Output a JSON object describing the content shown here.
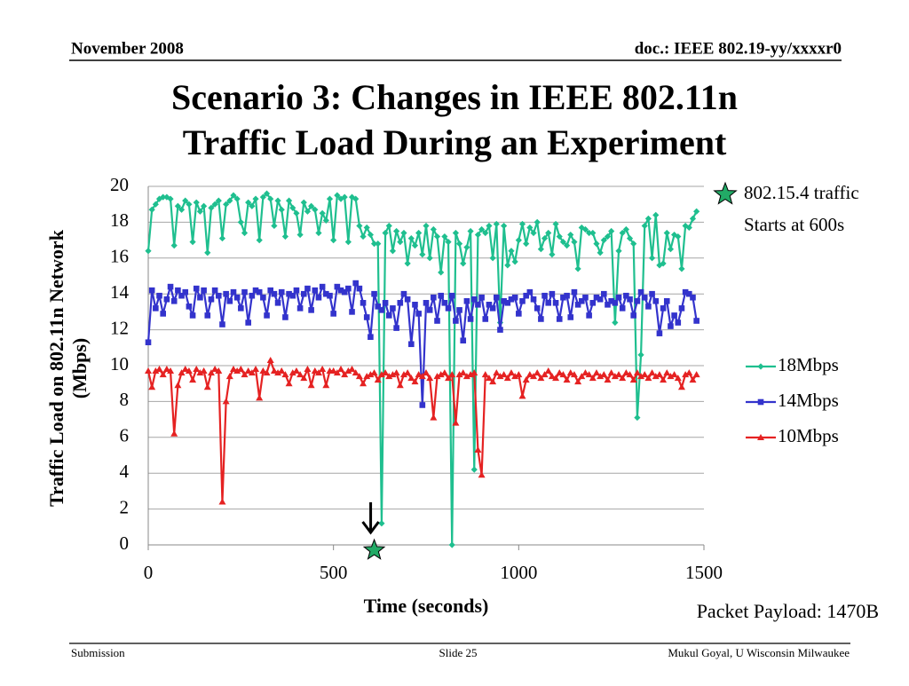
{
  "header": {
    "left": "November 2008",
    "right": "doc.: IEEE 802.19-yy/xxxxr0"
  },
  "footer": {
    "left": "Submission",
    "center": "Slide 25",
    "right": "Mukul Goyal, U Wisconsin Milwaukee"
  },
  "chart_data": {
    "type": "line",
    "title": [
      "Scenario 3: Changes in IEEE 802.11n",
      "Traffic Load During an Experiment"
    ],
    "y_label": [
      "Traffic Load on 802.11n Network",
      "(Mbps)"
    ],
    "x_label": "Time (seconds)",
    "annotation": {
      "text": [
        "802.15.4 traffic",
        "Starts at 600s"
      ],
      "x": 610,
      "y": 0,
      "color": "#22aa66"
    },
    "note": "Packet  Payload: 1470B",
    "xlim": [
      0,
      1500
    ],
    "xticks": [
      0,
      500,
      1000,
      1500
    ],
    "ylim": [
      0,
      20
    ],
    "yticks": [
      0,
      2,
      4,
      6,
      8,
      10,
      12,
      14,
      16,
      18,
      20
    ],
    "grid": true,
    "legend": "right",
    "x": [
      0,
      10,
      20,
      30,
      40,
      50,
      60,
      70,
      80,
      90,
      100,
      110,
      120,
      130,
      140,
      150,
      160,
      170,
      180,
      190,
      200,
      210,
      220,
      230,
      240,
      250,
      260,
      270,
      280,
      290,
      300,
      310,
      320,
      330,
      340,
      350,
      360,
      370,
      380,
      390,
      400,
      410,
      420,
      430,
      440,
      450,
      460,
      470,
      480,
      490,
      500,
      510,
      520,
      530,
      540,
      550,
      560,
      570,
      580,
      590,
      600,
      610,
      620,
      630,
      640,
      650,
      660,
      670,
      680,
      690,
      700,
      710,
      720,
      730,
      740,
      750,
      760,
      770,
      780,
      790,
      800,
      810,
      820,
      830,
      840,
      850,
      860,
      870,
      880,
      890,
      900,
      910,
      920,
      930,
      940,
      950,
      960,
      970,
      980,
      990,
      1000,
      1010,
      1020,
      1030,
      1040,
      1050,
      1060,
      1070,
      1080,
      1090,
      1100,
      1110,
      1120,
      1130,
      1140,
      1150,
      1160,
      1170,
      1180,
      1190,
      1200,
      1210,
      1220,
      1230,
      1240,
      1250,
      1260,
      1270,
      1280,
      1290,
      1300,
      1310,
      1320,
      1330,
      1340,
      1350,
      1360,
      1370,
      1380,
      1390,
      1400,
      1410,
      1420,
      1430,
      1440,
      1450,
      1460,
      1470,
      1480
    ],
    "series": [
      {
        "name": "18Mbps",
        "color": "#1fbf8f",
        "marker": "diamond",
        "values": [
          16.4,
          18.7,
          19.0,
          19.3,
          19.4,
          19.4,
          19.3,
          16.7,
          18.9,
          18.7,
          19.2,
          19.0,
          16.9,
          19.1,
          18.6,
          18.9,
          16.3,
          18.8,
          19.0,
          19.2,
          17.1,
          19.0,
          19.2,
          19.5,
          19.3,
          18.0,
          17.4,
          19.1,
          18.9,
          19.3,
          17.0,
          19.4,
          19.6,
          19.3,
          17.8,
          19.2,
          18.7,
          17.2,
          19.2,
          18.8,
          18.5,
          17.3,
          19.1,
          18.6,
          18.9,
          18.7,
          17.4,
          18.5,
          18.1,
          19.3,
          17.0,
          19.5,
          19.3,
          19.4,
          16.9,
          19.4,
          19.3,
          17.8,
          17.2,
          17.7,
          17.3,
          16.8,
          16.8,
          1.2,
          17.4,
          17.8,
          16.4,
          17.5,
          16.9,
          17.4,
          15.7,
          17.1,
          16.7,
          17.4,
          16.2,
          17.8,
          16.0,
          17.6,
          17.2,
          15.2,
          17.2,
          16.9,
          0.0,
          17.4,
          16.8,
          15.7,
          16.6,
          17.5,
          4.2,
          17.3,
          17.6,
          17.4,
          17.8,
          16.0,
          17.9,
          12.4,
          17.8,
          15.6,
          16.4,
          15.8,
          17.0,
          17.9,
          16.8,
          17.7,
          17.4,
          18.0,
          16.5,
          17.1,
          17.4,
          16.2,
          17.9,
          17.2,
          16.9,
          16.7,
          17.3,
          16.9,
          15.4,
          17.7,
          17.6,
          17.4,
          17.4,
          16.8,
          16.3,
          17.0,
          17.2,
          17.5,
          12.4,
          16.4,
          17.4,
          17.6,
          17.1,
          16.8,
          7.1,
          10.6,
          17.8,
          18.2,
          16.0,
          18.4,
          15.6,
          15.7,
          17.4,
          16.5,
          17.3,
          17.2,
          15.4,
          17.8,
          17.7,
          18.2,
          18.6
        ]
      },
      {
        "name": "14Mbps",
        "color": "#3333cc",
        "marker": "square",
        "values": [
          11.3,
          14.2,
          13.2,
          13.9,
          12.9,
          13.7,
          14.4,
          13.6,
          14.2,
          13.9,
          14.1,
          13.3,
          12.8,
          14.3,
          13.8,
          14.2,
          12.8,
          13.7,
          14.2,
          13.9,
          12.3,
          14.0,
          13.6,
          14.1,
          13.8,
          13.2,
          14.1,
          12.4,
          13.9,
          14.2,
          14.1,
          13.8,
          12.8,
          14.2,
          14.0,
          13.5,
          14.1,
          12.7,
          14.0,
          13.9,
          14.2,
          13.2,
          14.0,
          14.3,
          13.1,
          14.2,
          13.8,
          14.4,
          14.0,
          13.9,
          12.9,
          14.4,
          14.2,
          14.1,
          14.3,
          13.0,
          14.6,
          14.3,
          13.5,
          12.7,
          11.6,
          14.0,
          13.3,
          13.1,
          13.5,
          12.8,
          13.2,
          12.1,
          13.5,
          14.0,
          13.7,
          11.2,
          13.4,
          12.9,
          7.8,
          13.5,
          13.1,
          13.8,
          12.5,
          13.9,
          13.5,
          13.2,
          13.9,
          12.5,
          13.1,
          11.4,
          13.6,
          12.6,
          13.7,
          13.4,
          13.8,
          12.6,
          13.4,
          13.2,
          13.8,
          12.0,
          13.6,
          13.5,
          13.7,
          13.8,
          12.9,
          13.6,
          13.9,
          14.1,
          13.7,
          13.2,
          12.6,
          13.9,
          13.5,
          14.0,
          13.5,
          12.6,
          13.8,
          13.9,
          12.7,
          14.1,
          13.4,
          13.6,
          13.8,
          12.8,
          13.5,
          13.8,
          13.7,
          14.0,
          13.4,
          13.6,
          13.5,
          13.8,
          13.2,
          13.9,
          13.7,
          12.8,
          13.6,
          14.1,
          13.8,
          13.3,
          14.0,
          13.6,
          11.8,
          13.2,
          13.6,
          12.2,
          12.8,
          12.4,
          13.2,
          14.1,
          14.0,
          13.8,
          12.5
        ]
      },
      {
        "name": "10Mbps",
        "color": "#e52222",
        "marker": "triangle",
        "values": [
          9.7,
          8.8,
          9.7,
          9.8,
          9.5,
          9.8,
          9.7,
          6.2,
          8.9,
          9.6,
          9.8,
          9.7,
          9.2,
          9.8,
          9.6,
          9.7,
          8.8,
          9.6,
          9.8,
          9.7,
          2.4,
          8.0,
          9.4,
          9.8,
          9.7,
          9.8,
          9.5,
          9.7,
          9.6,
          9.8,
          8.2,
          9.7,
          9.6,
          10.3,
          9.7,
          9.6,
          9.7,
          9.5,
          9.0,
          9.6,
          9.7,
          9.5,
          9.3,
          9.8,
          8.9,
          9.7,
          9.6,
          9.8,
          8.9,
          9.7,
          9.7,
          9.6,
          9.8,
          9.5,
          9.7,
          9.8,
          9.6,
          9.4,
          9.0,
          9.4,
          9.5,
          9.6,
          9.2,
          9.5,
          9.6,
          9.4,
          9.5,
          9.6,
          8.9,
          9.5,
          9.6,
          9.3,
          9.1,
          9.5,
          9.4,
          9.6,
          9.3,
          7.1,
          9.4,
          9.5,
          9.6,
          9.3,
          9.5,
          6.8,
          9.5,
          9.6,
          9.4,
          9.5,
          9.6,
          5.3,
          3.9,
          9.5,
          9.3,
          9.1,
          9.6,
          9.4,
          9.5,
          9.3,
          9.6,
          9.4,
          9.5,
          8.3,
          9.2,
          9.5,
          9.4,
          9.6,
          9.3,
          9.5,
          9.7,
          9.4,
          9.3,
          9.6,
          9.5,
          9.2,
          9.6,
          9.5,
          9.1,
          9.4,
          9.6,
          9.5,
          9.3,
          9.6,
          9.4,
          9.5,
          9.2,
          9.6,
          9.4,
          9.5,
          9.3,
          9.6,
          9.5,
          9.2,
          9.6,
          9.4,
          9.5,
          9.3,
          9.6,
          9.4,
          9.5,
          9.2,
          9.6,
          9.4,
          9.5,
          9.3,
          8.8,
          9.5,
          9.6,
          9.2,
          9.5
        ]
      }
    ]
  }
}
